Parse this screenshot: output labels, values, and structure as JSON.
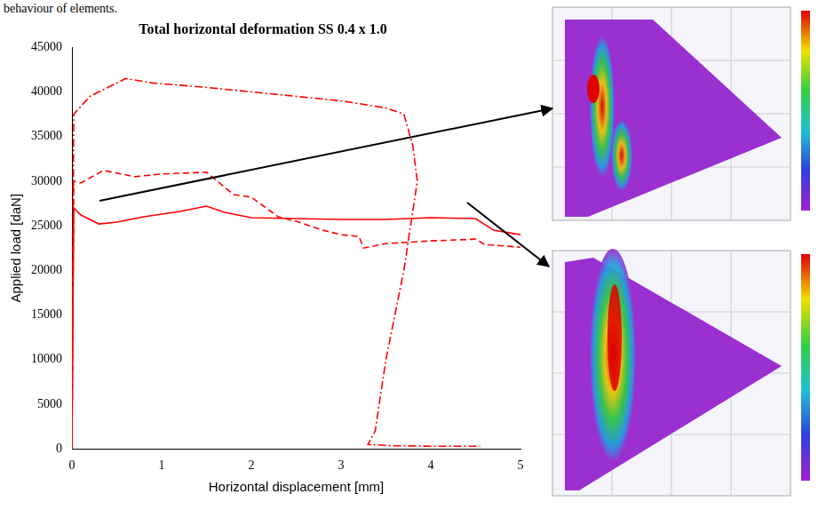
{
  "chart_data": {
    "type": "line",
    "title": "Total horizontal deformation SS 0.4 x 1.0",
    "annotations": [
      "behaviour of elements."
    ],
    "x_label": "Horizontal displacement [mm]",
    "y_label": "Applied load [daN]",
    "xlim": [
      0,
      5
    ],
    "xticks": [
      0,
      1,
      2,
      3,
      4,
      5
    ],
    "ylim": [
      0,
      45000
    ],
    "yticks": [
      0,
      5000,
      10000,
      15000,
      20000,
      25000,
      30000,
      35000,
      40000,
      45000
    ],
    "grid": false,
    "series": [
      {
        "color": "#ff0000",
        "line_style": "solid",
        "x": [
          0,
          0.02,
          0.1,
          0.3,
          0.5,
          0.8,
          1.2,
          1.5,
          1.7,
          2.0,
          2.5,
          3.0,
          3.5,
          4.0,
          4.5,
          4.7,
          5.0
        ],
        "values": [
          0,
          27000,
          26200,
          25200,
          25400,
          26000,
          26600,
          27200,
          26500,
          25900,
          25800,
          25700,
          25700,
          25900,
          25800,
          24500,
          24000
        ]
      },
      {
        "color": "#ff0000",
        "line_style": "dashed",
        "x": [
          0,
          0.02,
          0.1,
          0.35,
          0.7,
          1.0,
          1.5,
          1.8,
          2.0,
          2.3,
          2.5,
          2.8,
          3.0,
          3.2,
          3.25,
          3.5,
          4.0,
          4.5,
          4.6,
          5.0
        ],
        "values": [
          0,
          30000,
          29800,
          31200,
          30500,
          30800,
          31000,
          28500,
          28200,
          26000,
          25500,
          24500,
          24000,
          23800,
          22500,
          23000,
          23300,
          23500,
          22900,
          22600
        ]
      },
      {
        "color": "#ff0000",
        "line_style": "dashdot",
        "x": [
          0,
          0.02,
          0.2,
          0.5,
          0.6,
          0.9,
          1.5,
          2.0,
          2.5,
          3.0,
          3.5,
          3.7,
          3.8,
          3.85,
          3.7,
          3.5,
          3.38,
          3.3,
          3.6,
          4.0,
          4.55
        ],
        "values": [
          0,
          37500,
          39500,
          41000,
          41500,
          41000,
          40500,
          40000,
          39500,
          39000,
          38200,
          37500,
          34000,
          30000,
          20000,
          10000,
          2000,
          500,
          350,
          300,
          300
        ]
      }
    ]
  }
}
